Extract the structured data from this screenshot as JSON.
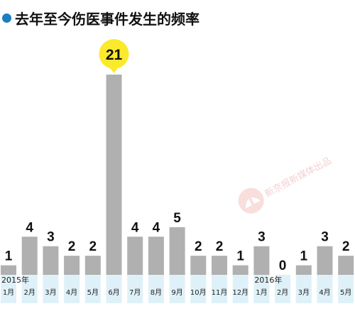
{
  "title": "去年至今伤医事件发生的频率",
  "colors": {
    "bar": "#b0b0b0",
    "highlight_bubble": "#fbea2c",
    "axis_cell": "#dff1f8",
    "title_dot": "#1a7fc1"
  },
  "watermark": {
    "text": "新京报新媒体出品"
  },
  "chart_data": {
    "type": "bar",
    "title": "去年至今伤医事件发生的频率",
    "xlabel": "",
    "ylabel": "",
    "ylim": [
      0,
      21
    ],
    "grid": false,
    "legend": "none",
    "year_labels": [
      {
        "label": "2015年",
        "index": 0
      },
      {
        "label": "2016年",
        "index": 12
      }
    ],
    "categories": [
      "1月",
      "2月",
      "3月",
      "4月",
      "5月",
      "6月",
      "7月",
      "8月",
      "9月",
      "10月",
      "11月",
      "12月",
      "1月",
      "2月",
      "3月",
      "4月",
      "5月"
    ],
    "values": [
      1,
      4,
      3,
      2,
      2,
      21,
      4,
      4,
      5,
      2,
      2,
      1,
      3,
      0,
      1,
      3,
      2
    ],
    "highlight_index": 5
  }
}
